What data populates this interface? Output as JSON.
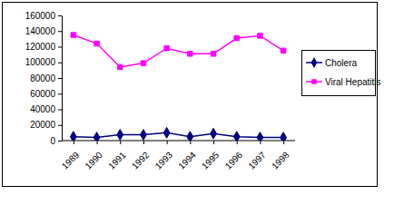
{
  "chart_data": {
    "type": "line",
    "categories": [
      "1989",
      "1990",
      "1991",
      "1992",
      "1993",
      "1994",
      "1995",
      "1996",
      "1997",
      "1998"
    ],
    "series": [
      {
        "name": "Cholera",
        "color": "#000080",
        "marker": "diamond",
        "values": [
          5000,
          4000,
          7500,
          7500,
          10000,
          5000,
          9000,
          5000,
          4000,
          4000
        ]
      },
      {
        "name": "Viral Hepatitis",
        "color": "#ff00ff",
        "marker": "square",
        "values": [
          135000,
          124000,
          94000,
          99000,
          118000,
          111000,
          111000,
          131000,
          134000,
          115000
        ]
      }
    ],
    "ylim": [
      0,
      160000
    ],
    "yticks": [
      0,
      20000,
      40000,
      60000,
      80000,
      100000,
      120000,
      140000,
      160000
    ],
    "grid": false,
    "legend": "right"
  }
}
